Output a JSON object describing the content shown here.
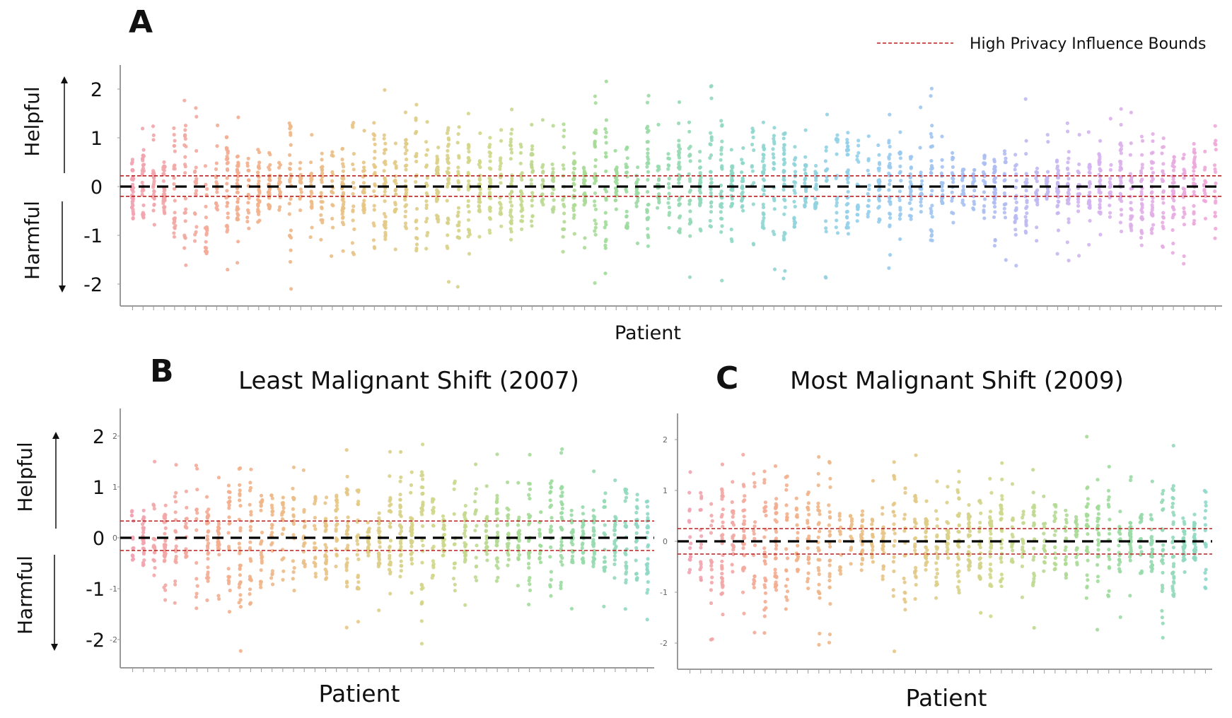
{
  "legend": {
    "label": "High Privacy Influence Bounds",
    "color": "#b22222"
  },
  "y_axis": {
    "top_label": "Helpful",
    "bottom_label": "Harmful"
  },
  "colors": {
    "zero_line": "#000000",
    "bound_line": "#b22222",
    "axis": "#9a9a9a"
  },
  "chart_data": [
    {
      "panel": "A",
      "type": "scatter",
      "title": "",
      "xlabel": "Patient",
      "ylabel": "",
      "y_ticks": [
        2,
        1,
        0,
        -1,
        -2
      ],
      "ylim": [
        -2.5,
        2.5
      ],
      "patients": 104,
      "bounds": [
        -0.2,
        0.22
      ],
      "palette": [
        "#f2a3b3",
        "#f3b08a",
        "#e6c785",
        "#cfd88c",
        "#9edb9a",
        "#8fd8c8",
        "#93d0ec",
        "#a9bff2",
        "#d6b3f0",
        "#f0a8d8"
      ],
      "seed": 7
    },
    {
      "panel": "B",
      "type": "scatter",
      "title": "Least Malignant Shift (2007)",
      "xlabel": "Patient",
      "ylabel": "",
      "y_ticks": [
        2,
        1,
        0,
        -1,
        -2
      ],
      "ylim": [
        -2.5,
        2.5
      ],
      "patients": 49,
      "bounds": [
        -0.25,
        0.33
      ],
      "palette": [
        "#f2a3b3",
        "#f3b08a",
        "#e6c785",
        "#cfd88c",
        "#9edb9a",
        "#8fd8c8"
      ],
      "seed": 19
    },
    {
      "panel": "C",
      "type": "scatter",
      "title": "Most Malignant Shift (2009)",
      "xlabel": "Patient",
      "ylabel": "",
      "y_ticks": [
        2,
        1,
        0,
        -1,
        -2
      ],
      "ylim": [
        -2.5,
        2.5
      ],
      "patients": 49,
      "bounds": [
        -0.25,
        0.25
      ],
      "palette": [
        "#f2a3b3",
        "#f3b08a",
        "#e6c785",
        "#cfd88c",
        "#9edb9a",
        "#8fd8c8"
      ],
      "seed": 31
    }
  ]
}
